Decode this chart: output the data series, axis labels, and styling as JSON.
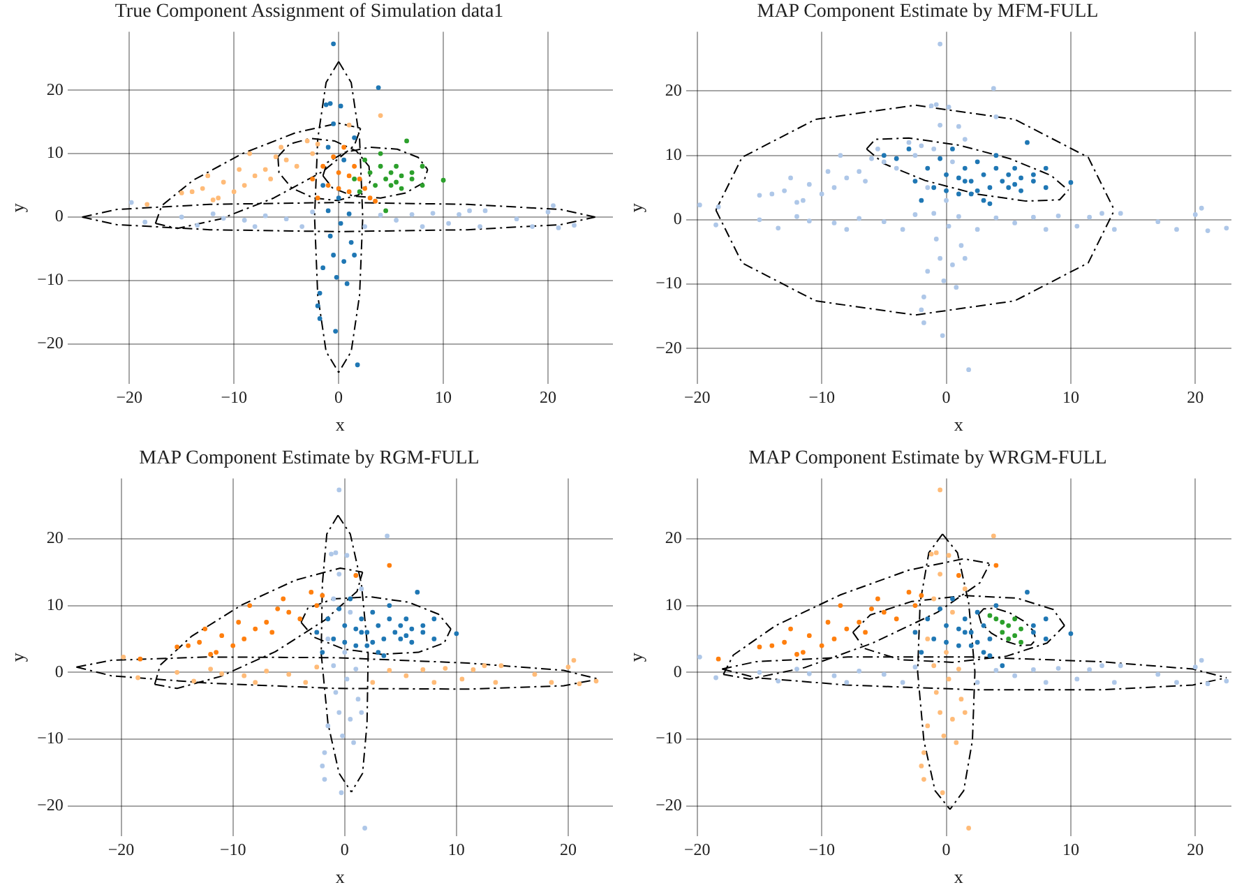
{
  "chart_data": [
    {
      "type": "scatter",
      "title": "True Component Assignment of Simulation data1",
      "xlabel": "x",
      "ylabel": "y",
      "xlim": [
        -25.9,
        26.2
      ],
      "ylim": [
        -26.3,
        29.2
      ],
      "xticks": [
        -20,
        -10,
        0,
        10,
        20
      ],
      "yticks": [
        -20,
        -10,
        0,
        10,
        20
      ],
      "grid": true,
      "marker": "circle",
      "series": [
        {
          "color": "#aec7e8",
          "x": [
            -19.8,
            -18.5,
            -15,
            -13.5,
            -12,
            -11,
            -9,
            -8,
            -7,
            -5,
            -3.5,
            -2.5,
            2.5,
            4,
            5.5,
            7,
            8,
            9,
            10.5,
            11.5,
            12.5,
            13.5,
            14,
            17,
            18.5,
            20,
            20.5,
            21,
            22.5
          ],
          "values": [
            2.3,
            -0.8,
            0,
            -1.3,
            0.5,
            -0.2,
            -0.5,
            -1.5,
            0.2,
            -0.3,
            -1.5,
            0.8,
            -1.5,
            0.3,
            -0.5,
            0.4,
            -1.5,
            0.6,
            -1,
            0.4,
            1,
            -1.5,
            1,
            -0.3,
            -1.5,
            0.8,
            1.8,
            -1.7,
            -1.3
          ]
        },
        {
          "color": "#ffbb78",
          "x": [
            -18.3,
            -15,
            -14,
            -13,
            -12.5,
            -12,
            -11.5,
            -11,
            -10,
            -9.5,
            -9,
            -8.5,
            -8,
            -7,
            -6.5,
            -6,
            -5.5,
            -5,
            -4,
            -3,
            -2.5,
            -2,
            1,
            4
          ],
          "values": [
            2,
            3.8,
            4,
            4.5,
            6.5,
            2.7,
            3,
            5.5,
            4,
            7.5,
            5,
            10,
            6.5,
            7.5,
            6,
            9.5,
            11,
            9,
            8,
            12,
            10,
            11.5,
            14.5,
            16
          ]
        },
        {
          "color": "#1f77b4",
          "x": [
            -0.5,
            3.8,
            -1.2,
            -0.8,
            0.2,
            -0.5,
            1.5,
            -1,
            0.5,
            -1.5,
            0,
            -1,
            1,
            0.2,
            -0.8,
            1.2,
            -0.5,
            0.5,
            -1.5,
            1.5,
            -0.2,
            0.8,
            -1.8,
            -2,
            -1.8,
            -0.3,
            1.8
          ],
          "values": [
            27.3,
            20.4,
            17.7,
            17.9,
            17.5,
            14.7,
            12.5,
            11,
            9,
            5,
            3,
            1,
            0.5,
            -1,
            -3,
            -4,
            -6,
            -7,
            -8,
            -6,
            -9.5,
            -10.5,
            -12,
            -14,
            -16,
            -18,
            -23.3
          ]
        },
        {
          "color": "#ff7f0e",
          "x": [
            -2,
            -1,
            0,
            1,
            2,
            3,
            1.5,
            -0.5,
            0.5,
            -2.5,
            2.5,
            3.5,
            0,
            1,
            -1.5
          ],
          "values": [
            3,
            5,
            7,
            4,
            6,
            3,
            8,
            9.5,
            11,
            6,
            4.5,
            2.5,
            4.5,
            6.5,
            8
          ]
        },
        {
          "color": "#2ca02c",
          "x": [
            2.5,
            3,
            3.5,
            4,
            4.5,
            5,
            5,
            5.5,
            6,
            6,
            6.5,
            7,
            8,
            8,
            10,
            4.5,
            1.5,
            2,
            4,
            5.5,
            7
          ],
          "values": [
            9,
            7,
            5,
            8,
            6,
            7,
            5,
            8,
            6.5,
            4.5,
            12,
            7,
            5,
            8,
            5.8,
            1,
            6,
            4,
            10,
            5.5,
            6
          ]
        },
        {
          "type": "line",
          "color": "#000000",
          "line_style": "dashed",
          "marker": "none",
          "x": [
            0,
            1.2,
            2,
            2.3,
            2,
            1.2,
            0
          ],
          "values": [
            24.5,
            21.2,
            12.3,
            0,
            -12.3,
            -21.2,
            -24.5
          ]
        },
        {
          "type": "line",
          "color": "#000000",
          "line_style": "dashed",
          "marker": "none",
          "x": [
            0,
            -1.2,
            -2,
            -2.3,
            -2,
            -1.2,
            0
          ],
          "values": [
            24.5,
            21.2,
            12.3,
            0,
            -12.3,
            -21.2,
            -24.5
          ]
        },
        {
          "type": "line",
          "color": "#000000",
          "line_style": "dashed",
          "marker": "none",
          "x": [
            -24.5,
            -21.2,
            -12.3,
            0,
            12.3,
            21.2,
            24.5
          ],
          "values": [
            0,
            1.2,
            2,
            2.3,
            2,
            1.2,
            0
          ]
        },
        {
          "type": "line",
          "color": "#000000",
          "line_style": "dashed",
          "marker": "none",
          "x": [
            -24.5,
            -21.2,
            -12.3,
            0,
            12.3,
            21.2,
            24.5
          ],
          "values": [
            0,
            -1.2,
            -2,
            -2.3,
            -2,
            -1.2,
            0
          ]
        },
        {
          "type": "line",
          "color": "#000000",
          "line_style": "dashed",
          "marker": "none",
          "x": [
            -17.5,
            -15.4,
            -11.3,
            -6.2,
            -1.5,
            1.5,
            2.1
          ],
          "values": [
            -1,
            -1.8,
            -0.3,
            3,
            7.2,
            11.3,
            14
          ]
        },
        {
          "type": "line",
          "color": "#000000",
          "line_style": "dashed",
          "marker": "none",
          "x": [
            -17.5,
            -16.9,
            -13.9,
            -9.2,
            -4.1,
            0,
            2.1
          ],
          "values": [
            -1,
            1.8,
            5.8,
            10,
            13.3,
            14.8,
            14
          ]
        },
        {
          "type": "line",
          "color": "#000000",
          "line_style": "dashed",
          "marker": "none",
          "x": [
            -5.8,
            -4.7,
            -2.7,
            -0.4,
            1.7,
            2.9,
            3
          ],
          "values": [
            9.5,
            11.5,
            12.4,
            12,
            10.4,
            8,
            5.5
          ]
        },
        {
          "type": "line",
          "color": "#000000",
          "line_style": "dashed",
          "marker": "none",
          "x": [
            -5.8,
            -5.7,
            -4.5,
            -2.4,
            -0.1,
            1.9,
            3
          ],
          "values": [
            9.5,
            7,
            4.6,
            3,
            2.6,
            3.5,
            5.5
          ]
        },
        {
          "type": "line",
          "color": "#000000",
          "line_style": "dashed",
          "marker": "none",
          "x": [
            -1.5,
            -1.1,
            0.6,
            3,
            5.6,
            7.6,
            8.5
          ],
          "values": [
            6.5,
            8.6,
            10.2,
            11,
            10.7,
            9.4,
            7.5
          ]
        },
        {
          "type": "line",
          "color": "#000000",
          "line_style": "dashed",
          "marker": "none",
          "x": [
            -1.5,
            -0.6,
            1.4,
            4,
            6.4,
            8.1,
            8.5
          ],
          "values": [
            6.5,
            4.6,
            3.3,
            3,
            3.8,
            5.4,
            7.5
          ]
        }
      ]
    },
    {
      "type": "scatter",
      "title": "MAP Component Estimate by MFM-FULL",
      "xlabel": "x",
      "ylabel": "y",
      "xlim": [
        -20.9,
        22.9
      ],
      "ylim": [
        -25.5,
        29.2
      ],
      "xticks": [
        -20,
        -10,
        0,
        10,
        20
      ],
      "yticks": [
        -20,
        -10,
        0,
        10,
        20
      ],
      "grid": true,
      "marker": "circle",
      "series": [
        {
          "color": "#aec7e8",
          "x": [
            -19.8,
            -18.5,
            -15,
            -13.5,
            -12,
            -11,
            -9,
            -8,
            -7,
            -5,
            -3.5,
            -2.5,
            2.5,
            4,
            5.5,
            7,
            8,
            9,
            10.5,
            11.5,
            12.5,
            13.5,
            14,
            17,
            18.5,
            20,
            20.5,
            21,
            22.5,
            -18.3,
            -15,
            -14,
            -13,
            -12.5,
            -12,
            -11.5,
            -11,
            -10,
            -9.5,
            -9,
            -8.5,
            -8,
            -7,
            -6.5,
            -6,
            -5.5,
            -5,
            -4,
            -3,
            -2.5,
            -2,
            1,
            4,
            -0.5,
            3.8,
            -1.2,
            -0.8,
            0.2,
            -0.5,
            1.5,
            -1,
            0.5,
            -1.5,
            0,
            -1,
            1,
            0.2,
            -0.8,
            1.2,
            -0.5,
            0.5,
            -1.5,
            1.5,
            -0.2,
            0.8,
            -1.8,
            -2,
            -1.8,
            -0.3,
            1.8
          ],
          "values": [
            2.3,
            -0.8,
            0,
            -1.3,
            0.5,
            -0.2,
            -0.5,
            -1.5,
            0.2,
            -0.3,
            -1.5,
            0.8,
            -1.5,
            0.3,
            -0.5,
            0.4,
            -1.5,
            0.6,
            -1,
            0.4,
            1,
            -1.5,
            1,
            -0.3,
            -1.5,
            0.8,
            1.8,
            -1.7,
            -1.3,
            2,
            3.8,
            4,
            4.5,
            6.5,
            2.7,
            3,
            5.5,
            4,
            7.5,
            5,
            10,
            6.5,
            7.5,
            6,
            9.5,
            11,
            9,
            8,
            12,
            10,
            11.5,
            14.5,
            16,
            27.3,
            20.4,
            17.7,
            17.9,
            17.5,
            14.7,
            12.5,
            11,
            9,
            5,
            3,
            1,
            0.5,
            -1,
            -3,
            -4,
            -6,
            -7,
            -8,
            -6,
            -9.5,
            -10.5,
            -12,
            -14,
            -16,
            -18,
            -23.3
          ]
        },
        {
          "color": "#1f77b4",
          "x": [
            -2,
            -1,
            0,
            1,
            2,
            3,
            1.5,
            -0.5,
            0.5,
            -2.5,
            2.5,
            3.5,
            0,
            1,
            -1.5,
            2.5,
            3,
            3.5,
            4,
            4.5,
            5,
            5,
            5.5,
            6,
            6,
            6.5,
            7,
            8,
            8,
            10,
            1.5,
            2,
            4,
            5.5,
            7,
            -5,
            -4,
            -3
          ],
          "values": [
            3,
            5,
            7,
            4,
            6,
            3,
            8,
            9.5,
            11,
            6,
            4.5,
            2.5,
            4.5,
            6.5,
            8,
            9,
            7,
            5,
            8,
            6,
            7,
            5,
            8,
            6.5,
            4.5,
            12,
            7,
            5,
            8,
            5.8,
            6,
            4,
            10,
            5.5,
            6,
            10,
            9.5,
            11
          ]
        },
        {
          "type": "line",
          "color": "#000000",
          "line_style": "dashed",
          "marker": "none",
          "x": [
            -18.5,
            -16.4,
            -10.5,
            -2.5,
            5.5,
            11.4,
            13.5
          ],
          "values": [
            1.5,
            9.7,
            15.6,
            17.8,
            15.6,
            9.7,
            1.5
          ]
        },
        {
          "type": "line",
          "color": "#000000",
          "line_style": "dashed",
          "marker": "none",
          "x": [
            -18.5,
            -16.4,
            -10.5,
            -2.5,
            5.5,
            11.4,
            13.5
          ],
          "values": [
            1.5,
            -6.7,
            -12.6,
            -14.8,
            -12.6,
            -6.7,
            1.5
          ]
        },
        {
          "type": "line",
          "color": "#000000",
          "line_style": "dashed",
          "marker": "none",
          "x": [
            -6.4,
            -5.7,
            -3,
            1,
            5.1,
            8.4,
            9.8
          ],
          "values": [
            11,
            12.5,
            12.7,
            11.6,
            9.5,
            6.9,
            4.6
          ]
        },
        {
          "type": "line",
          "color": "#000000",
          "line_style": "dashed",
          "marker": "none",
          "x": [
            -6.4,
            -5,
            -1.7,
            2.4,
            6.4,
            9.1,
            9.8
          ],
          "values": [
            11,
            8.7,
            6.1,
            4,
            2.9,
            3.1,
            4.6
          ]
        }
      ]
    },
    {
      "type": "scatter",
      "title": "MAP Component Estimate by RGM-FULL",
      "xlabel": "x",
      "ylabel": "y",
      "xlim": [
        -24.8,
        24
      ],
      "ylim": [
        -24.5,
        29
      ],
      "xticks": [
        -20,
        -10,
        0,
        10,
        20
      ],
      "yticks": [
        -20,
        -10,
        0,
        10,
        20
      ],
      "grid": true,
      "marker": "circle",
      "series": [
        {
          "color": "#ffbb78",
          "x": [
            -19.8,
            -18.5,
            -15,
            -13.5,
            -12,
            -11,
            -9,
            -8,
            -7,
            -5,
            -3.5,
            -2.5,
            2.5,
            4,
            5.5,
            7,
            8,
            9,
            10.5,
            11.5,
            12.5,
            13.5,
            14,
            17,
            18.5,
            20,
            20.5,
            21,
            22.5
          ],
          "values": [
            2.3,
            -0.8,
            0,
            -1.3,
            0.5,
            -0.2,
            -0.5,
            -1.5,
            0.2,
            -0.3,
            -1.5,
            0.8,
            -1.5,
            0.3,
            -0.5,
            0.4,
            -1.5,
            0.6,
            -1,
            0.4,
            1,
            -1.5,
            1,
            -0.3,
            -1.5,
            0.8,
            1.8,
            -1.7,
            -1.3
          ]
        },
        {
          "color": "#ff7f0e",
          "x": [
            -18.3,
            -15,
            -14,
            -13,
            -12.5,
            -12,
            -11.5,
            -11,
            -10,
            -9.5,
            -9,
            -8.5,
            -8,
            -7,
            -6.5,
            -6,
            -5.5,
            -5,
            -4,
            -3,
            -2.5,
            -2,
            1,
            4
          ],
          "values": [
            2,
            3.8,
            4,
            4.5,
            6.5,
            2.7,
            3,
            5.5,
            4,
            7.5,
            5,
            10,
            6.5,
            7.5,
            6,
            9.5,
            11,
            9,
            8,
            12,
            10,
            11.5,
            14.5,
            16
          ]
        },
        {
          "color": "#aec7e8",
          "x": [
            -0.5,
            3.8,
            -1.2,
            -0.8,
            0.2,
            -0.5,
            1.5,
            -1,
            0.5,
            -1.5,
            0,
            -1,
            1,
            0.2,
            -0.8,
            1.2,
            -0.5,
            0.5,
            -1.5,
            1.5,
            -0.2,
            0.8,
            -1.8,
            -2,
            -1.8,
            -0.3,
            1.8
          ],
          "values": [
            27.3,
            20.4,
            17.7,
            17.9,
            17.5,
            14.7,
            12.5,
            11,
            9,
            5,
            3,
            1,
            0.5,
            -1,
            -3,
            -4,
            -6,
            -7,
            -8,
            -6,
            -9.5,
            -10.5,
            -12,
            -14,
            -16,
            -18,
            -23.3
          ]
        },
        {
          "color": "#1f77b4",
          "x": [
            -2,
            -1,
            0,
            1,
            2,
            3,
            1.5,
            -0.5,
            0.5,
            -2.5,
            2.5,
            3.5,
            0,
            1,
            -1.5,
            2.5,
            3,
            3.5,
            4,
            4.5,
            5,
            5,
            5.5,
            6,
            6,
            6.5,
            7,
            8,
            8,
            10,
            1.5,
            2,
            4,
            5.5,
            7
          ],
          "values": [
            3,
            5,
            7,
            4,
            6,
            3,
            8,
            9.5,
            11,
            6,
            4.5,
            2.5,
            4.5,
            6.5,
            8,
            9,
            7,
            5,
            8,
            6,
            7,
            5,
            8,
            6.5,
            4.5,
            12,
            7,
            5,
            8,
            5.8,
            6,
            4,
            10,
            5.5,
            6
          ]
        },
        {
          "type": "line",
          "color": "#000000",
          "line_style": "dashed",
          "marker": "none",
          "x": [
            -0.6,
            0.5,
            1.5,
            2.1,
            2,
            1.6,
            0.6
          ],
          "values": [
            23.5,
            20.7,
            13.2,
            2.8,
            -7.6,
            -15.1,
            -17.9
          ]
        },
        {
          "type": "line",
          "color": "#000000",
          "line_style": "dashed",
          "marker": "none",
          "x": [
            -0.6,
            -1.6,
            -2,
            -2.1,
            -1.5,
            -0.5,
            0.6
          ],
          "values": [
            23.5,
            20.7,
            13.2,
            2.8,
            -7.6,
            -15.1,
            -17.9
          ]
        },
        {
          "type": "line",
          "color": "#000000",
          "line_style": "dashed",
          "marker": "none",
          "x": [
            -24,
            -20.9,
            -12.3,
            -0.7,
            11,
            19.6,
            22.7
          ],
          "values": [
            0.8,
            1.8,
            2.3,
            2.2,
            1.4,
            0.3,
            -1
          ]
        },
        {
          "type": "line",
          "color": "#000000",
          "line_style": "dashed",
          "marker": "none",
          "x": [
            -24,
            -20.9,
            -12.3,
            -0.7,
            11,
            19.6,
            22.7
          ],
          "values": [
            0.8,
            -0.5,
            -1.6,
            -2.4,
            -2.5,
            -2,
            -1
          ]
        },
        {
          "type": "line",
          "color": "#000000",
          "line_style": "dashed",
          "marker": "none",
          "x": [
            -17,
            -15,
            -11.1,
            -6.2,
            -1.8,
            1.1,
            1.6
          ],
          "values": [
            -1.8,
            -2.4,
            -0.6,
            3.1,
            7.8,
            12.1,
            15
          ]
        },
        {
          "type": "line",
          "color": "#000000",
          "line_style": "dashed",
          "marker": "none",
          "x": [
            -17,
            -16.5,
            -13.7,
            -9.2,
            -4.4,
            -0.4,
            1.6
          ],
          "values": [
            -1.8,
            1.1,
            5.4,
            10.1,
            13.8,
            15.6,
            15
          ]
        },
        {
          "type": "line",
          "color": "#000000",
          "line_style": "dashed",
          "marker": "none",
          "x": [
            -3.9,
            -3.3,
            -1,
            2.3,
            5.7,
            8.4,
            9.5
          ],
          "values": [
            7.5,
            9.6,
            11,
            11.3,
            10.5,
            8.7,
            6.5
          ]
        },
        {
          "type": "line",
          "color": "#000000",
          "line_style": "dashed",
          "marker": "none",
          "x": [
            -3.9,
            -2.8,
            -0.1,
            3.3,
            6.6,
            8.9,
            9.5
          ],
          "values": [
            7.5,
            5.3,
            3.5,
            2.7,
            3,
            4.4,
            6.5
          ]
        }
      ]
    },
    {
      "type": "scatter",
      "title": "MAP Component Estimate by WRGM-FULL",
      "xlabel": "x",
      "ylabel": "y",
      "xlim": [
        -20.9,
        22.9
      ],
      "ylim": [
        -24.5,
        29
      ],
      "xticks": [
        -20,
        -10,
        0,
        10,
        20
      ],
      "yticks": [
        -20,
        -10,
        0,
        10,
        20
      ],
      "grid": true,
      "marker": "circle",
      "series": [
        {
          "color": "#aec7e8",
          "x": [
            -19.8,
            -18.5,
            -15,
            -13.5,
            -12,
            -11,
            -9,
            -8,
            -7,
            -5,
            -3.5,
            -2.5,
            2.5,
            4,
            5.5,
            7,
            8,
            9,
            10.5,
            11.5,
            12.5,
            13.5,
            14,
            17,
            18.5,
            20,
            20.5,
            21,
            22.5
          ],
          "values": [
            2.3,
            -0.8,
            0,
            -1.3,
            0.5,
            -0.2,
            -0.5,
            -1.5,
            0.2,
            -0.3,
            -1.5,
            0.8,
            -1.5,
            0.3,
            -0.5,
            0.4,
            -1.5,
            0.6,
            -1,
            0.4,
            1,
            -1.5,
            1,
            -0.3,
            -1.5,
            0.8,
            1.8,
            -1.7,
            -1.3
          ]
        },
        {
          "color": "#ff7f0e",
          "x": [
            -18.3,
            -15,
            -14,
            -13,
            -12.5,
            -12,
            -11.5,
            -11,
            -10,
            -9.5,
            -9,
            -8.5,
            -8,
            -7,
            -6.5,
            -6,
            -5.5,
            -5,
            -4,
            -3,
            -2.5,
            -2,
            1,
            4
          ],
          "values": [
            2,
            3.8,
            4,
            4.5,
            6.5,
            2.7,
            3,
            5.5,
            4,
            7.5,
            5,
            10,
            6.5,
            7.5,
            6,
            9.5,
            11,
            9,
            8,
            12,
            10,
            11.5,
            14.5,
            16
          ]
        },
        {
          "color": "#ffbb78",
          "x": [
            -0.5,
            3.8,
            -1.2,
            -0.8,
            0.2,
            -0.5,
            1.5,
            -1,
            0.5,
            -1.5,
            0,
            -1,
            1,
            0.2,
            -0.8,
            1.2,
            -0.5,
            0.5,
            -1.5,
            1.5,
            -0.2,
            0.8,
            -1.8,
            -2,
            -1.8,
            -0.3,
            1.8
          ],
          "values": [
            27.3,
            20.4,
            17.7,
            17.9,
            17.5,
            14.7,
            12.5,
            11,
            9,
            5,
            3,
            1,
            0.5,
            -1,
            -3,
            -4,
            -6,
            -7,
            -8,
            -6,
            -9.5,
            -10.5,
            -12,
            -14,
            -16,
            -18,
            -23.3
          ]
        },
        {
          "color": "#1f77b4",
          "x": [
            -2,
            -1,
            0,
            1,
            2,
            3,
            1.5,
            -0.5,
            0.5,
            -2.5,
            2.5,
            3.5,
            0,
            1,
            -1.5,
            2.5,
            3,
            3.5,
            6.5,
            7,
            8,
            8,
            10,
            4.5,
            1.5,
            2,
            4,
            7
          ],
          "values": [
            3,
            5,
            7,
            4,
            6,
            3,
            8,
            9.5,
            11,
            6,
            4.5,
            2.5,
            4.5,
            6.5,
            8,
            9,
            7,
            5,
            12,
            7,
            5,
            8,
            5.8,
            1,
            6,
            4,
            10,
            6
          ]
        },
        {
          "color": "#2ca02c",
          "x": [
            4,
            4.5,
            5,
            5,
            5.5,
            6,
            5.5,
            6,
            3.5,
            4.5
          ],
          "values": [
            8,
            6,
            7,
            5,
            8,
            6.5,
            5.5,
            4.5,
            8.5,
            7.5
          ]
        },
        {
          "type": "line",
          "color": "#000000",
          "line_style": "dashed",
          "marker": "none",
          "x": [
            -0.3,
            0.9,
            1.8,
            2.3,
            2.1,
            1.4,
            0.3
          ],
          "values": [
            20.7,
            17.9,
            10.4,
            0.1,
            -10.2,
            -17.7,
            -20.5
          ]
        },
        {
          "type": "line",
          "color": "#000000",
          "line_style": "dashed",
          "marker": "none",
          "x": [
            -0.3,
            -1.4,
            -2.1,
            -2.3,
            -1.8,
            -0.9,
            0.3
          ],
          "values": [
            20.7,
            17.9,
            10.4,
            0.1,
            -10.2,
            -17.7,
            -20.5
          ]
        },
        {
          "type": "line",
          "color": "#000000",
          "line_style": "dashed",
          "marker": "none",
          "x": [
            -18,
            -15.3,
            -7.9,
            2.3,
            12.4,
            19.8,
            22.5
          ],
          "values": [
            0.5,
            1.6,
            2.3,
            2.3,
            1.6,
            0.5,
            -0.8
          ]
        },
        {
          "type": "line",
          "color": "#000000",
          "line_style": "dashed",
          "marker": "none",
          "x": [
            -18,
            -15.3,
            -7.9,
            2.3,
            12.4,
            19.8,
            22.5
          ],
          "values": [
            0.5,
            -0.8,
            -1.9,
            -2.6,
            -2.6,
            -1.9,
            -0.8
          ]
        },
        {
          "type": "line",
          "color": "#000000",
          "line_style": "dashed",
          "marker": "none",
          "x": [
            -17.9,
            -15.8,
            -11.4,
            -5.9,
            -0.7,
            2.7,
            3.5
          ],
          "values": [
            -0.3,
            -1,
            0.7,
            4.4,
            9,
            13.4,
            16.3
          ]
        },
        {
          "type": "line",
          "color": "#000000",
          "line_style": "dashed",
          "marker": "none",
          "x": [
            -17.9,
            -17.1,
            -13.7,
            -8.5,
            -3,
            1.4,
            3.5
          ],
          "values": [
            -0.3,
            2.6,
            7,
            11.6,
            15.3,
            17,
            16.3
          ]
        },
        {
          "type": "line",
          "color": "#000000",
          "line_style": "dashed",
          "marker": "none",
          "x": [
            -7.5,
            -6.1,
            -2.8,
            1.5,
            5.7,
            8.6,
            9.5
          ],
          "values": [
            6,
            8.6,
            10.6,
            11.5,
            11.1,
            9.4,
            7
          ]
        },
        {
          "type": "line",
          "color": "#000000",
          "line_style": "dashed",
          "marker": "none",
          "x": [
            -7.5,
            -6.6,
            -3.7,
            0.5,
            4.8,
            8.1,
            9.5
          ],
          "values": [
            6,
            3.6,
            1.9,
            1.5,
            2.4,
            4.4,
            7
          ]
        },
        {
          "type": "line",
          "color": "#000000",
          "line_style": "dashed",
          "marker": "none",
          "x": [
            2.6,
            3,
            3.9,
            5.1,
            6.2,
            7,
            7.2
          ],
          "values": [
            8.7,
            9.5,
            9.6,
            8.9,
            7.7,
            6.2,
            4.9
          ]
        },
        {
          "type": "line",
          "color": "#000000",
          "line_style": "dashed",
          "marker": "none",
          "x": [
            2.6,
            2.8,
            3.6,
            4.7,
            5.9,
            6.8,
            7.2
          ],
          "values": [
            8.7,
            7.4,
            5.9,
            4.7,
            4,
            4.1,
            4.9
          ]
        }
      ]
    }
  ]
}
